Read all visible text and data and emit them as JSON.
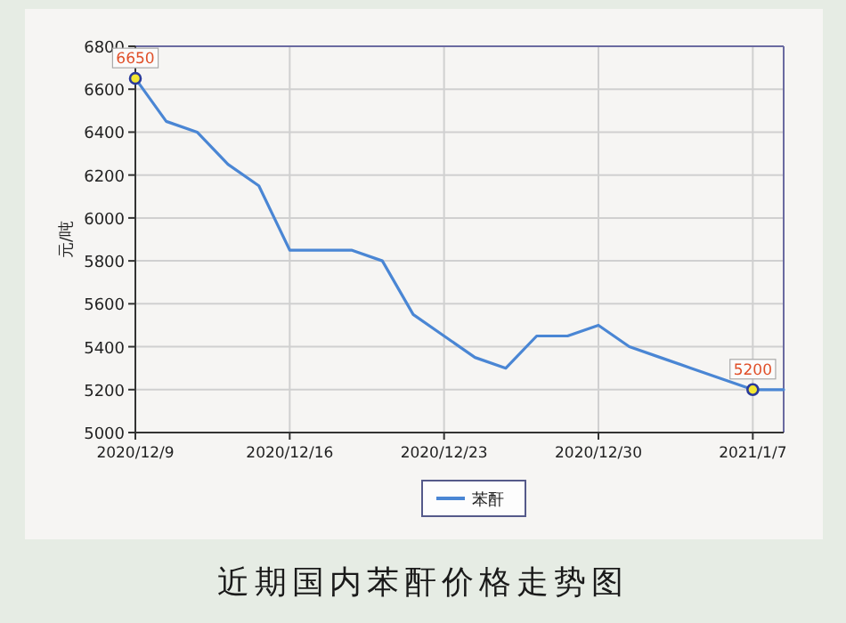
{
  "chart_data": {
    "type": "line",
    "title": "近期国内苯酐价格走势图",
    "ylabel": "元/吨",
    "categories": [
      "2020/12/9",
      null,
      null,
      null,
      null,
      "2020/12/16",
      null,
      null,
      null,
      null,
      "2020/12/23",
      null,
      null,
      null,
      null,
      "2020/12/30",
      null,
      null,
      null,
      null,
      "2021/1/7",
      null
    ],
    "series": [
      {
        "name": "苯酐",
        "color": "#4a86d4",
        "values": [
          6650,
          6450,
          6400,
          6250,
          6150,
          5850,
          5850,
          5850,
          5800,
          5550,
          5450,
          5350,
          5300,
          5450,
          5450,
          5500,
          5400,
          5350,
          5300,
          5250,
          5200,
          5200
        ],
        "value_labels": [
          "6650",
          null,
          null,
          null,
          null,
          null,
          null,
          null,
          null,
          null,
          null,
          null,
          null,
          null,
          null,
          null,
          null,
          null,
          null,
          null,
          "5200",
          null
        ]
      }
    ],
    "ylim": [
      5000,
      6800
    ],
    "yticks": [
      5000,
      5200,
      5400,
      5600,
      5800,
      6000,
      6200,
      6400,
      6600,
      6800
    ],
    "grid": true,
    "legend": "bottom"
  }
}
